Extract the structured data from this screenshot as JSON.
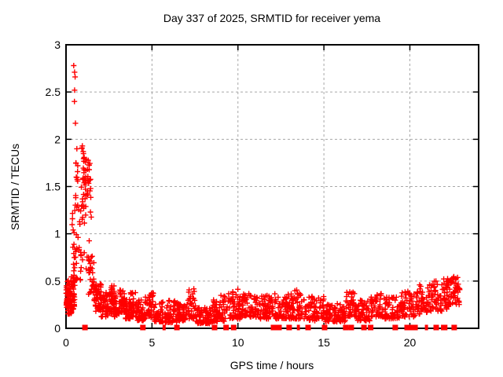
{
  "chart_data": {
    "type": "scatter",
    "title": "Day 337 of 2025, SRMTID for receiver yema",
    "xlabel": "GPS time / hours",
    "ylabel": "SRMTID / TECUs",
    "xlim": [
      0,
      24
    ],
    "ylim": [
      0,
      3
    ],
    "xticks": [
      0,
      5,
      10,
      15,
      20
    ],
    "xtick_labels": [
      "0",
      "5",
      "10",
      "15",
      "20"
    ],
    "yticks": [
      0,
      0.5,
      1,
      1.5,
      2,
      2.5,
      3
    ],
    "ytick_labels": [
      "0",
      "0.5",
      "1",
      "1.5",
      "2",
      "2.5",
      "3"
    ],
    "grid": true,
    "legend_position": "none",
    "marker": "plus",
    "marker_color": "#ff0000",
    "grid_color": "#a8a8a8",
    "axis_color": "#000000",
    "background_color": "#ffffff",
    "series_name": "SRMTID",
    "envelope_bins": [
      [
        0.0,
        0.15,
        0.22,
        0.52,
        30,
        1.2
      ],
      [
        0.1,
        0.35,
        0.15,
        0.55,
        48,
        1.4
      ],
      [
        0.3,
        0.5,
        0.2,
        0.62,
        30,
        1.4
      ],
      [
        0.32,
        0.48,
        0.65,
        1.25,
        9,
        1.0
      ],
      [
        0.45,
        0.65,
        0.3,
        0.85,
        18,
        1.0
      ],
      [
        0.5,
        0.78,
        0.85,
        1.75,
        15,
        1.0
      ],
      [
        0.75,
        1.0,
        0.5,
        1.25,
        16,
        1.0
      ],
      [
        0.85,
        1.15,
        1.25,
        1.95,
        18,
        1.0
      ],
      [
        1.0,
        1.45,
        1.45,
        1.8,
        26,
        1.0
      ],
      [
        1.05,
        1.5,
        0.6,
        1.45,
        22,
        1.0
      ],
      [
        1.3,
        1.62,
        0.35,
        0.8,
        20,
        1.2
      ],
      [
        1.58,
        2.05,
        0.18,
        0.5,
        40,
        1.2
      ],
      [
        1.75,
        2.05,
        0.3,
        0.47,
        15,
        1.0
      ],
      [
        2.05,
        2.45,
        0.12,
        0.4,
        35,
        1.4
      ],
      [
        2.45,
        2.8,
        0.15,
        0.45,
        40,
        1.3
      ],
      [
        2.8,
        3.05,
        0.12,
        0.35,
        25,
        1.4
      ],
      [
        3.05,
        3.4,
        0.15,
        0.42,
        35,
        1.3
      ],
      [
        3.4,
        3.75,
        0.1,
        0.32,
        35,
        1.5
      ],
      [
        3.75,
        4.15,
        0.12,
        0.38,
        40,
        1.4
      ],
      [
        4.15,
        4.6,
        0.08,
        0.3,
        40,
        1.5
      ],
      [
        4.6,
        5.15,
        0.1,
        0.38,
        45,
        1.4
      ],
      [
        5.15,
        5.65,
        0.07,
        0.28,
        40,
        1.5
      ],
      [
        5.75,
        6.45,
        0.06,
        0.3,
        55,
        1.5
      ],
      [
        6.45,
        7.1,
        0.08,
        0.28,
        55,
        1.5
      ],
      [
        7.1,
        7.55,
        0.1,
        0.43,
        35,
        1.2
      ],
      [
        7.55,
        8.45,
        0.05,
        0.22,
        70,
        1.5
      ],
      [
        8.45,
        9.4,
        0.07,
        0.35,
        70,
        1.4
      ],
      [
        9.4,
        10.2,
        0.1,
        0.43,
        60,
        1.3
      ],
      [
        10.2,
        11.25,
        0.12,
        0.37,
        75,
        1.4
      ],
      [
        11.25,
        12.05,
        0.1,
        0.35,
        60,
        1.4
      ],
      [
        12.1,
        13.0,
        0.1,
        0.37,
        65,
        1.4
      ],
      [
        13.0,
        14.05,
        0.1,
        0.41,
        75,
        1.4
      ],
      [
        14.1,
        15.0,
        0.08,
        0.35,
        65,
        1.4
      ],
      [
        15.05,
        16.25,
        0.07,
        0.26,
        85,
        1.5
      ],
      [
        16.25,
        16.85,
        0.12,
        0.39,
        40,
        1.2
      ],
      [
        16.85,
        17.7,
        0.08,
        0.3,
        55,
        1.4
      ],
      [
        17.7,
        18.45,
        0.12,
        0.37,
        50,
        1.3
      ],
      [
        18.45,
        19.4,
        0.1,
        0.33,
        60,
        1.4
      ],
      [
        19.4,
        20.35,
        0.12,
        0.4,
        60,
        1.3
      ],
      [
        20.35,
        21.0,
        0.15,
        0.46,
        45,
        1.2
      ],
      [
        21.0,
        21.9,
        0.18,
        0.5,
        55,
        1.2
      ],
      [
        21.95,
        22.35,
        0.2,
        0.53,
        35,
        1.1
      ],
      [
        22.35,
        22.9,
        0.25,
        0.56,
        40,
        1.1
      ]
    ],
    "outlier_points": [
      [
        0.45,
        2.78
      ],
      [
        0.5,
        2.71
      ],
      [
        0.53,
        2.66
      ],
      [
        0.5,
        2.52
      ],
      [
        0.49,
        2.4
      ],
      [
        0.55,
        2.17
      ],
      [
        0.95,
        1.93
      ],
      [
        1.0,
        1.87
      ],
      [
        1.05,
        1.8
      ],
      [
        0.63,
        1.9
      ],
      [
        0.68,
        1.72
      ],
      [
        0.6,
        1.6
      ]
    ],
    "zero_line_squares": [
      1.1,
      4.47,
      6.45,
      8.64,
      9.31,
      9.75,
      12.07,
      12.39,
      12.98,
      14.08,
      15.04,
      16.27,
      16.59,
      17.33,
      17.72,
      19.15,
      19.84,
      20.02,
      20.3,
      21.53,
      21.97,
      22.58
    ],
    "zero_line_thin_marks": [
      5.67,
      5.74,
      13.48,
      13.55,
      20.93,
      21.0,
      22.06,
      22.13
    ]
  }
}
